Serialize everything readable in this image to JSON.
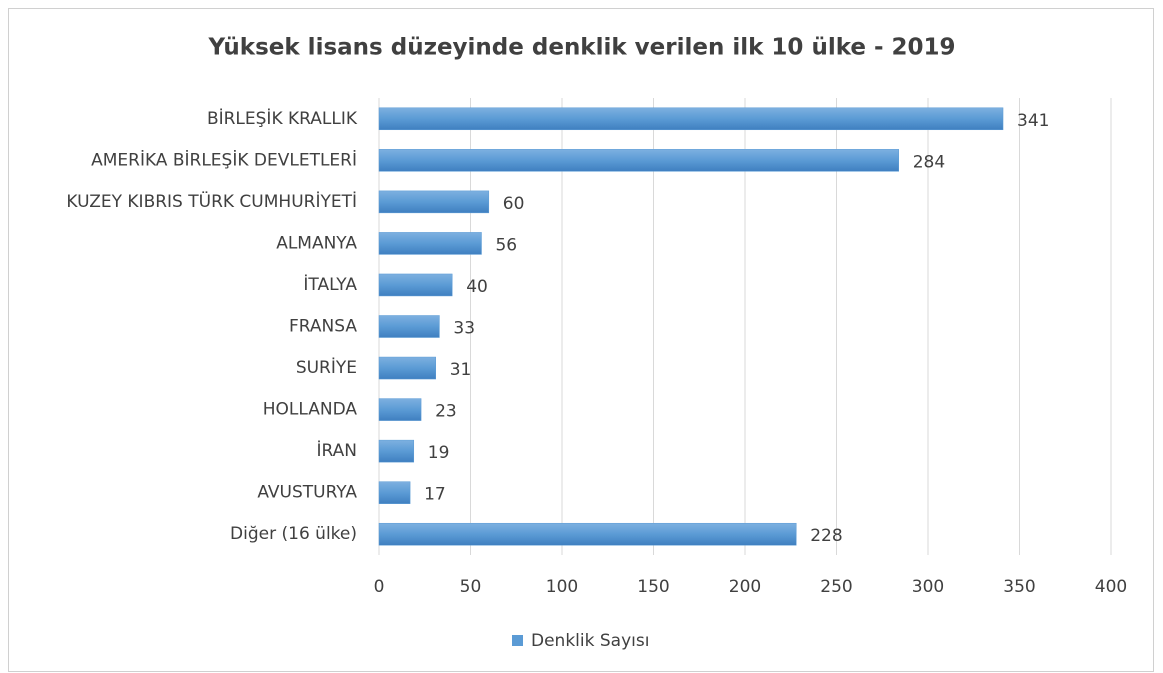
{
  "chart_data": {
    "type": "barh",
    "title": "Yüksek lisans düzeyinde denklik verilen ilk 10 ülke - 2019",
    "categories": [
      "BİRLEŞİK KRALLIK",
      "AMERİKA BİRLEŞİK DEVLETLERİ",
      "KUZEY KIBRIS TÜRK CUMHURİYETİ",
      "ALMANYA",
      "İTALYA",
      "FRANSA",
      "SURİYE",
      "HOLLANDA",
      "İRAN",
      "AVUSTURYA",
      "Diğer (16 ülke)"
    ],
    "series": [
      {
        "name": "Denklik Sayısı",
        "color": "#5b9bd5",
        "values": [
          341,
          284,
          60,
          56,
          40,
          33,
          31,
          23,
          19,
          17,
          228
        ]
      }
    ],
    "xlim": [
      0,
      400
    ],
    "xticks": [
      0,
      50,
      100,
      150,
      200,
      250,
      300,
      350,
      400
    ],
    "grid": true,
    "legend": "bottom"
  }
}
